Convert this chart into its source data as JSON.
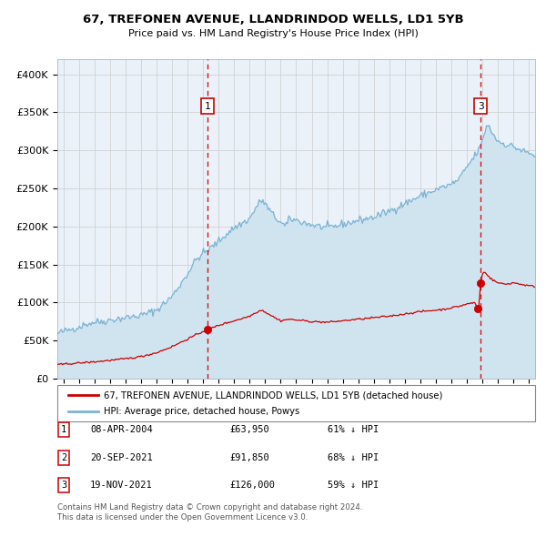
{
  "title": "67, TREFONEN AVENUE, LLANDRINDOD WELLS, LD1 5YB",
  "subtitle": "Price paid vs. HM Land Registry's House Price Index (HPI)",
  "legend_line1": "67, TREFONEN AVENUE, LLANDRINDOD WELLS, LD1 5YB (detached house)",
  "legend_line2": "HPI: Average price, detached house, Powys",
  "hpi_color": "#7ab3d4",
  "hpi_fill_color": "#d0e4f0",
  "price_color": "#cc0000",
  "vline_color": "#cc0000",
  "annotation_border_color": "#cc0000",
  "grid_color": "#cccccc",
  "bg_color": "#eaf1f8",
  "transactions": [
    {
      "label": "1",
      "date": "08-APR-2004",
      "price": 63950,
      "price_str": "£63,950",
      "pct": "61% ↓ HPI",
      "x_year": 2004.27
    },
    {
      "label": "2",
      "date": "20-SEP-2021",
      "price": 91850,
      "price_str": "£91,850",
      "pct": "68% ↓ HPI",
      "x_year": 2021.72
    },
    {
      "label": "3",
      "date": "19-NOV-2021",
      "price": 126000,
      "price_str": "£126,000",
      "pct": "59% ↓ HPI",
      "x_year": 2021.89
    }
  ],
  "footer_line1": "Contains HM Land Registry data © Crown copyright and database right 2024.",
  "footer_line2": "This data is licensed under the Open Government Licence v3.0.",
  "ylim": [
    0,
    420000
  ],
  "xlim_start": 1994.6,
  "xlim_end": 2025.4
}
